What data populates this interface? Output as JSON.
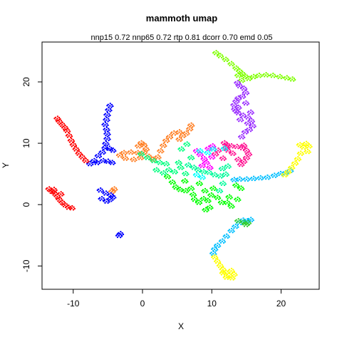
{
  "chart_data": {
    "type": "scatter",
    "title": "mammoth umap",
    "subtitle": "nnp15 0.72 nnp65 0.72 rtp 0.81 dcorr 0.70 emd 0.05",
    "xlabel": "X",
    "ylabel": "Y",
    "xlim": [
      -14.5,
      25.5
    ],
    "ylim": [
      -13.8,
      26.5
    ],
    "xticks": [
      -10,
      0,
      10,
      20
    ],
    "yticks": [
      -10,
      0,
      10,
      20
    ],
    "grid": false,
    "legend": "none",
    "groups": [
      {
        "color": "#7fff00",
        "points": [
          [
            10.6,
            24.7
          ],
          [
            11.2,
            24.2
          ],
          [
            12,
            23.6
          ],
          [
            12.8,
            22.9
          ],
          [
            13.5,
            22.2
          ],
          [
            14,
            21.7
          ],
          [
            14.4,
            21.3
          ],
          [
            14.8,
            20.9
          ],
          [
            15.3,
            20.5
          ],
          [
            16,
            20.8
          ],
          [
            16.8,
            21
          ],
          [
            17.8,
            21.1
          ],
          [
            18.8,
            21
          ],
          [
            19.8,
            20.8
          ],
          [
            20.8,
            20.6
          ],
          [
            21.6,
            20.4
          ],
          [
            13.8,
            21
          ],
          [
            14.3,
            20.2
          ]
        ]
      },
      {
        "color": "#9b30ff",
        "points": [
          [
            13.7,
            19.8
          ],
          [
            14,
            19.3
          ],
          [
            14.6,
            18.9
          ],
          [
            14.9,
            18.2
          ],
          [
            14.4,
            17.6
          ],
          [
            13.8,
            17.3
          ],
          [
            13.5,
            16.8
          ],
          [
            13.2,
            16.2
          ],
          [
            13.3,
            15.5
          ],
          [
            13.8,
            14.9
          ],
          [
            14.5,
            14.5
          ],
          [
            15.2,
            14.2
          ],
          [
            15.7,
            13.6
          ],
          [
            15.9,
            12.8
          ],
          [
            15.4,
            12.2
          ],
          [
            14.8,
            11.8
          ],
          [
            14.3,
            11
          ],
          [
            13.8,
            15.8
          ],
          [
            14.9,
            16.5
          ],
          [
            15.6,
            15
          ],
          [
            15.2,
            13.2
          ],
          [
            14.1,
            13.8
          ],
          [
            13.5,
            15.2
          ]
        ]
      },
      {
        "color": "#ff1493",
        "points": [
          [
            11.8,
            10
          ],
          [
            12.2,
            9.7
          ],
          [
            12.8,
            9.5
          ],
          [
            13.6,
            9.4
          ],
          [
            14.4,
            9.2
          ],
          [
            14.6,
            9.6
          ],
          [
            15,
            8.8
          ],
          [
            15.3,
            8.2
          ],
          [
            15,
            7.6
          ],
          [
            14.6,
            7
          ],
          [
            14.2,
            6.5
          ],
          [
            13.8,
            7.3
          ],
          [
            13,
            8.3
          ],
          [
            12.3,
            8.8
          ],
          [
            10.5,
            8.2
          ],
          [
            10.9,
            8.8
          ],
          [
            11.6,
            7.5
          ],
          [
            12,
            9.2
          ]
        ]
      },
      {
        "color": "#ff00ff",
        "points": [
          [
            7.8,
            8.7
          ],
          [
            8.3,
            8.1
          ],
          [
            8.9,
            7.4
          ],
          [
            9.2,
            6.8
          ],
          [
            8.6,
            6.3
          ],
          [
            9.5,
            9.1
          ],
          [
            10.1,
            9.5
          ],
          [
            10,
            7.7
          ],
          [
            9.7,
            6
          ]
        ]
      },
      {
        "color": "#ff7f24",
        "points": [
          [
            -0.6,
            9.5
          ],
          [
            -0.2,
            10
          ],
          [
            0.2,
            9.7
          ],
          [
            0.5,
            9
          ],
          [
            0.2,
            8.5
          ],
          [
            -0.7,
            8.4
          ],
          [
            -1.7,
            8.5
          ],
          [
            -2.7,
            8.4
          ],
          [
            -3.3,
            8
          ],
          [
            -2.5,
            7.5
          ],
          [
            -1.3,
            7.3
          ],
          [
            -0.3,
            7.6
          ],
          [
            0.9,
            7.8
          ],
          [
            1.5,
            7.3
          ],
          [
            2.2,
            7.7
          ],
          [
            2.6,
            8.7
          ],
          [
            3,
            9.6
          ],
          [
            3.4,
            10.4
          ],
          [
            3.9,
            11
          ],
          [
            4.5,
            11.6
          ],
          [
            5.3,
            11.8
          ],
          [
            5.8,
            11.2
          ],
          [
            6.3,
            11.6
          ],
          [
            6.8,
            12.3
          ],
          [
            7,
            12.9
          ],
          [
            5.3,
            10.6
          ],
          [
            -4.1,
            2.5
          ],
          [
            -4.4,
            2.1
          ]
        ]
      },
      {
        "color": "#0000ff",
        "points": [
          [
            -4.7,
            16.1
          ],
          [
            -4.9,
            15.4
          ],
          [
            -5.1,
            14.6
          ],
          [
            -5.2,
            13.8
          ],
          [
            -5.4,
            13
          ],
          [
            -5.2,
            12.2
          ],
          [
            -5.1,
            11.5
          ],
          [
            -5.1,
            10.7
          ],
          [
            -5.3,
            9.9
          ],
          [
            -5.4,
            9.2
          ],
          [
            -4.8,
            9.1
          ],
          [
            -4.3,
            8.8
          ],
          [
            -5.8,
            8.5
          ],
          [
            -6.4,
            7.9
          ],
          [
            -7,
            7.1
          ],
          [
            -7.6,
            6.6
          ],
          [
            -6.6,
            6.8
          ],
          [
            -5.7,
            7.1
          ],
          [
            -5,
            7
          ],
          [
            -4.4,
            6.8
          ],
          [
            -6.1,
            2.3
          ],
          [
            -5.3,
            1.8
          ],
          [
            -4.6,
            1.5
          ],
          [
            -4.3,
            1.2
          ],
          [
            -4.7,
            0.8
          ],
          [
            -5.2,
            0.5
          ],
          [
            -5.9,
            0.9
          ],
          [
            -3.2,
            -4.8
          ],
          [
            -3.4,
            -5.1
          ]
        ]
      },
      {
        "color": "#ff0000",
        "points": [
          [
            -12.3,
            14
          ],
          [
            -12,
            13.5
          ],
          [
            -11.6,
            13
          ],
          [
            -11.2,
            12.5
          ],
          [
            -10.9,
            12
          ],
          [
            -10.6,
            11.2
          ],
          [
            -10.3,
            10.4
          ],
          [
            -10,
            9.7
          ],
          [
            -9.6,
            9
          ],
          [
            -9.2,
            8.3
          ],
          [
            -8.7,
            7.7
          ],
          [
            -8.2,
            7.1
          ],
          [
            -13.5,
            2.5
          ],
          [
            -13.1,
            2.1
          ],
          [
            -12.7,
            1.8
          ],
          [
            -12.3,
            1.3
          ],
          [
            -12,
            0.8
          ],
          [
            -11.6,
            0.3
          ],
          [
            -11.2,
            -0.1
          ],
          [
            -10.7,
            -0.5
          ],
          [
            -10.2,
            -0.6
          ],
          [
            -11.8,
            1.7
          ],
          [
            -12.8,
            2.4
          ]
        ]
      },
      {
        "color": "#00bfff",
        "points": [
          [
            13.2,
            4
          ],
          [
            14,
            4.1
          ],
          [
            15,
            4.1
          ],
          [
            16,
            4.2
          ],
          [
            17,
            4.3
          ],
          [
            18,
            4.4
          ],
          [
            19,
            4.7
          ],
          [
            19.9,
            5
          ],
          [
            20.6,
            5.1
          ],
          [
            21.3,
            5.5
          ],
          [
            14.5,
            -2.6
          ],
          [
            15.1,
            -2.7
          ],
          [
            15.6,
            -2.5
          ],
          [
            14,
            -3
          ],
          [
            13.4,
            -3.6
          ],
          [
            12.8,
            -4.3
          ],
          [
            12.1,
            -5.2
          ],
          [
            11.5,
            -6
          ],
          [
            10.8,
            -6.7
          ],
          [
            10.4,
            -7.3
          ],
          [
            10.2,
            -8
          ]
        ]
      },
      {
        "color": "#32cd32",
        "points": [
          [
            14.6,
            -2.9
          ],
          [
            15.2,
            -3
          ],
          [
            14.9,
            -3.3
          ],
          [
            13.8,
            -2.7
          ]
        ]
      },
      {
        "color": "#ffff00",
        "points": [
          [
            20.5,
            4.8
          ],
          [
            21,
            5.3
          ],
          [
            21.5,
            6
          ],
          [
            22,
            6.7
          ],
          [
            22.4,
            7.4
          ],
          [
            22.8,
            8.3
          ],
          [
            23.2,
            9.3
          ],
          [
            23.6,
            9.9
          ],
          [
            24,
            9.5
          ],
          [
            23.8,
            8.6
          ],
          [
            22.7,
            9.7
          ],
          [
            10.4,
            -8.6
          ],
          [
            10.8,
            -9.3
          ],
          [
            11.2,
            -10
          ],
          [
            11.6,
            -10.6
          ],
          [
            12,
            -11.1
          ],
          [
            12.5,
            -11.6
          ],
          [
            12.9,
            -12
          ],
          [
            12.1,
            -11.9
          ],
          [
            11.6,
            -11.2
          ],
          [
            12.8,
            -10.8
          ],
          [
            13.2,
            -11.4
          ]
        ]
      },
      {
        "color": "#00ff7f",
        "points": [
          [
            -0.2,
            8.2
          ],
          [
            0.7,
            7.6
          ],
          [
            1.6,
            7.1
          ],
          [
            2.5,
            6.8
          ],
          [
            3.4,
            6.6
          ],
          [
            3.8,
            5.6
          ],
          [
            4.6,
            5.3
          ],
          [
            5.2,
            6.8
          ],
          [
            5.5,
            6
          ],
          [
            6.2,
            5
          ],
          [
            3,
            5.1
          ],
          [
            2,
            5.6
          ],
          [
            7,
            7.6
          ],
          [
            5.6,
            9
          ],
          [
            6.4,
            9.8
          ]
        ]
      },
      {
        "color": "#00fa9a",
        "points": [
          [
            6.6,
            6.4
          ],
          [
            7.4,
            6
          ],
          [
            8,
            5.6
          ],
          [
            8.8,
            5.3
          ],
          [
            9.6,
            5.2
          ],
          [
            10.4,
            4.8
          ],
          [
            11.2,
            4.6
          ],
          [
            12,
            4.9
          ],
          [
            11.5,
            5.8
          ],
          [
            12.3,
            6.2
          ],
          [
            11.6,
            3.4
          ],
          [
            11.1,
            2.2
          ]
        ]
      },
      {
        "color": "#00ff00",
        "points": [
          [
            3.6,
            4.5
          ],
          [
            4.3,
            3.6
          ],
          [
            4.8,
            2.8
          ],
          [
            5.4,
            2.4
          ],
          [
            6.2,
            2.2
          ],
          [
            7,
            2.6
          ],
          [
            7.3,
            1.6
          ],
          [
            7.5,
            0.8
          ],
          [
            8.1,
            0.3
          ],
          [
            8.8,
            0.9
          ],
          [
            9.4,
            0.6
          ],
          [
            9.7,
            -0.5
          ],
          [
            9.1,
            -0.9
          ],
          [
            9.9,
            1.5
          ],
          [
            10.2,
            2.6
          ],
          [
            10.8,
            1.1
          ],
          [
            11.4,
            0.3
          ],
          [
            12.2,
            0.3
          ],
          [
            12.5,
            1.2
          ],
          [
            13.5,
            3.1
          ],
          [
            14.2,
            2.6
          ],
          [
            13.7,
            0.8
          ],
          [
            12.8,
            -0.3
          ],
          [
            6.1,
            3.8
          ],
          [
            8.2,
            3.4
          ],
          [
            9,
            2.2
          ]
        ]
      },
      {
        "color": "#00ffff",
        "points": [
          [
            8.3,
            8.7
          ],
          [
            9.4,
            8.4
          ],
          [
            10.2,
            9
          ],
          [
            11.8,
            9.1
          ],
          [
            8.6,
            4.4
          ],
          [
            7.8,
            4.8
          ]
        ]
      }
    ]
  }
}
